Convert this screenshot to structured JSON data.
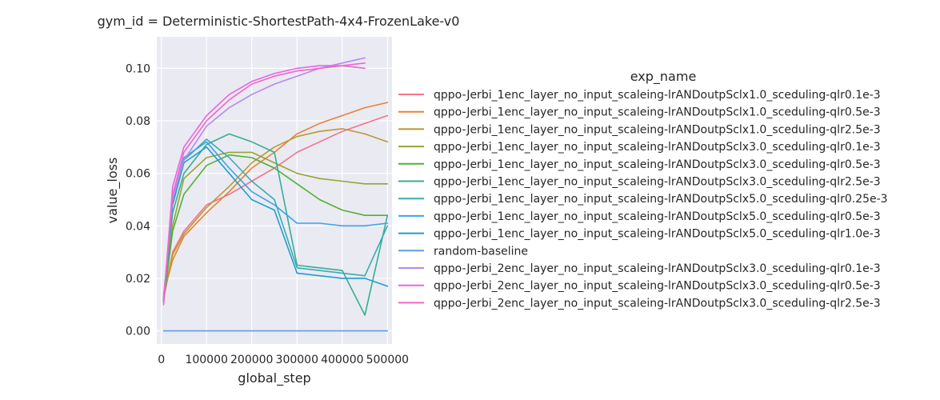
{
  "chart_data": {
    "type": "line",
    "title": "gym_id = Deterministic-ShortestPath-4x4-FrozenLake-v0",
    "xlabel": "global_step",
    "ylabel": "value_loss",
    "xlim": [
      -10000,
      510000
    ],
    "ylim": [
      -0.005,
      0.112
    ],
    "xticks": [
      0,
      100000,
      200000,
      300000,
      400000,
      500000
    ],
    "xtick_labels": [
      "0",
      "100000",
      "200000",
      "300000",
      "400000",
      "500000"
    ],
    "yticks": [
      0.0,
      0.02,
      0.04,
      0.06,
      0.08,
      0.1
    ],
    "ytick_labels": [
      "0.00",
      "0.02",
      "0.04",
      "0.06",
      "0.08",
      "0.10"
    ],
    "grid": true,
    "legend": {
      "title": "exp_name",
      "placement": "right, outside plot"
    },
    "series": [
      {
        "name": "qppo-Jerbi_1enc_layer_no_input_scaleing-lrANDoutpSclx1.0_sceduling-qlr0.1e-3",
        "color": "#f77189",
        "x": [
          5000,
          25000,
          50000,
          100000,
          150000,
          200000,
          250000,
          300000,
          350000,
          400000,
          450000,
          500000
        ],
        "y": [
          0.012,
          0.03,
          0.038,
          0.048,
          0.052,
          0.057,
          0.062,
          0.068,
          0.072,
          0.076,
          0.079,
          0.082
        ]
      },
      {
        "name": "qppo-Jerbi_1enc_layer_no_input_scaleing-lrANDoutpSclx1.0_sceduling-qlr0.5e-3",
        "color": "#e68332",
        "x": [
          5000,
          25000,
          50000,
          100000,
          150000,
          200000,
          250000,
          300000,
          350000,
          400000,
          450000,
          500000
        ],
        "y": [
          0.014,
          0.027,
          0.036,
          0.045,
          0.053,
          0.062,
          0.068,
          0.075,
          0.079,
          0.082,
          0.085,
          0.087
        ]
      },
      {
        "name": "qppo-Jerbi_1enc_layer_no_input_scaleing-lrANDoutpSclx1.0_sceduling-qlr2.5e-3",
        "color": "#bb9832",
        "x": [
          5000,
          25000,
          50000,
          100000,
          150000,
          200000,
          250000,
          300000,
          350000,
          400000,
          450000,
          500000
        ],
        "y": [
          0.013,
          0.029,
          0.037,
          0.047,
          0.055,
          0.064,
          0.07,
          0.074,
          0.076,
          0.077,
          0.075,
          0.072
        ]
      },
      {
        "name": "qppo-Jerbi_1enc_layer_no_input_scaleing-lrANDoutpSclx3.0_sceduling-qlr0.1e-3",
        "color": "#97a431",
        "x": [
          5000,
          25000,
          50000,
          100000,
          150000,
          200000,
          250000,
          300000,
          350000,
          400000,
          450000,
          500000
        ],
        "y": [
          0.012,
          0.04,
          0.058,
          0.066,
          0.068,
          0.068,
          0.064,
          0.06,
          0.058,
          0.057,
          0.056,
          0.056
        ]
      },
      {
        "name": "qppo-Jerbi_1enc_layer_no_input_scaleing-lrANDoutpSclx3.0_sceduling-qlr0.5e-3",
        "color": "#50b131",
        "x": [
          5000,
          25000,
          50000,
          100000,
          150000,
          200000,
          250000,
          300000,
          350000,
          400000,
          450000,
          500000
        ],
        "y": [
          0.011,
          0.038,
          0.052,
          0.063,
          0.067,
          0.066,
          0.062,
          0.056,
          0.05,
          0.046,
          0.044,
          0.044
        ]
      },
      {
        "name": "qppo-Jerbi_1enc_layer_no_input_scaleing-lrANDoutpSclx3.0_sceduling-qlr2.5e-3",
        "color": "#34ae91",
        "x": [
          5000,
          25000,
          50000,
          100000,
          150000,
          200000,
          250000,
          300000,
          350000,
          400000,
          450000,
          500000
        ],
        "y": [
          0.012,
          0.045,
          0.06,
          0.071,
          0.075,
          0.072,
          0.068,
          0.025,
          0.024,
          0.023,
          0.006,
          0.044
        ]
      },
      {
        "name": "qppo-Jerbi_1enc_layer_no_input_scaleing-lrANDoutpSclx5.0_sceduling-qlr0.25e-3",
        "color": "#37abb5",
        "x": [
          5000,
          25000,
          50000,
          100000,
          150000,
          200000,
          250000,
          300000,
          350000,
          400000,
          450000,
          500000
        ],
        "y": [
          0.013,
          0.05,
          0.065,
          0.073,
          0.066,
          0.057,
          0.05,
          0.024,
          0.023,
          0.022,
          0.021,
          0.04
        ]
      },
      {
        "name": "qppo-Jerbi_1enc_layer_no_input_scaleing-lrANDoutpSclx5.0_sceduling-qlr0.5e-3",
        "color": "#3ba3ec",
        "x": [
          5000,
          25000,
          50000,
          100000,
          150000,
          200000,
          250000,
          300000,
          350000,
          400000,
          450000,
          500000
        ],
        "y": [
          0.012,
          0.05,
          0.066,
          0.072,
          0.062,
          0.053,
          0.048,
          0.041,
          0.041,
          0.04,
          0.04,
          0.041
        ]
      },
      {
        "name": "qppo-Jerbi_1enc_layer_no_input_scaleing-lrANDoutpSclx5.0_sceduling-qlr1.0e-3",
        "color": "#1f9fcc",
        "x": [
          5000,
          25000,
          50000,
          100000,
          150000,
          200000,
          250000,
          300000,
          350000,
          400000,
          450000,
          500000
        ],
        "y": [
          0.011,
          0.048,
          0.064,
          0.07,
          0.06,
          0.05,
          0.046,
          0.022,
          0.021,
          0.02,
          0.02,
          0.017
        ]
      },
      {
        "name": "random-baseline",
        "color": "#5b9ee6",
        "x": [
          5000,
          500000
        ],
        "y": [
          0.0,
          0.0
        ]
      },
      {
        "name": "qppo-Jerbi_2enc_layer_no_input_scaleing-lrANDoutpSclx3.0_sceduling-qlr0.1e-3",
        "color": "#b38af0",
        "x": [
          5000,
          25000,
          50000,
          100000,
          150000,
          200000,
          250000,
          300000,
          350000,
          400000,
          450000
        ],
        "y": [
          0.012,
          0.05,
          0.065,
          0.078,
          0.085,
          0.09,
          0.094,
          0.097,
          0.1,
          0.102,
          0.104
        ]
      },
      {
        "name": "qppo-Jerbi_2enc_layer_no_input_scaleing-lrANDoutpSclx3.0_sceduling-qlr0.5e-3",
        "color": "#e465e7",
        "x": [
          5000,
          25000,
          50000,
          100000,
          150000,
          200000,
          250000,
          300000,
          350000,
          400000,
          450000
        ],
        "y": [
          0.011,
          0.055,
          0.07,
          0.082,
          0.09,
          0.095,
          0.098,
          0.1,
          0.101,
          0.101,
          0.1
        ]
      },
      {
        "name": "qppo-Jerbi_2enc_layer_no_input_scaleing-lrANDoutpSclx3.0_sceduling-qlr2.5e-3",
        "color": "#f565c7",
        "x": [
          5000,
          25000,
          50000,
          100000,
          150000,
          200000,
          250000,
          300000,
          350000,
          400000,
          450000
        ],
        "y": [
          0.01,
          0.052,
          0.068,
          0.08,
          0.088,
          0.094,
          0.097,
          0.099,
          0.1,
          0.101,
          0.102
        ]
      }
    ]
  }
}
